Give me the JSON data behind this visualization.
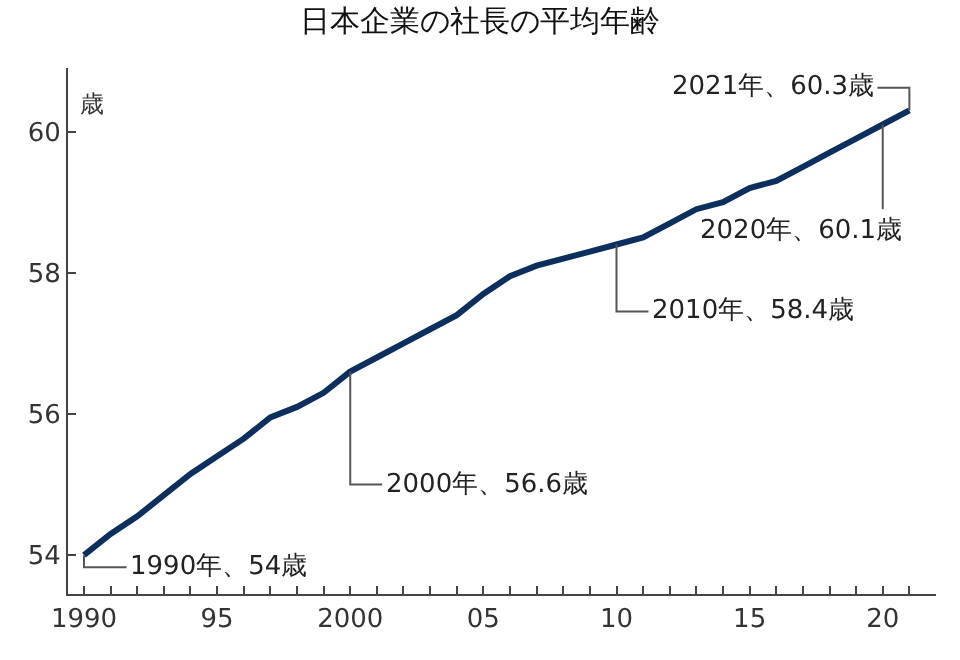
{
  "chart_data": {
    "type": "line",
    "title": "日本企業の社長の平均年齢",
    "ylabel": "歳",
    "x": [
      1990,
      1991,
      1992,
      1993,
      1994,
      1995,
      1996,
      1997,
      1998,
      1999,
      2000,
      2001,
      2002,
      2003,
      2004,
      2005,
      2006,
      2007,
      2008,
      2009,
      2010,
      2011,
      2012,
      2013,
      2014,
      2015,
      2016,
      2017,
      2018,
      2019,
      2020,
      2021
    ],
    "series": [
      {
        "color": "#0d2f5e",
        "values": [
          54.0,
          54.3,
          54.55,
          54.85,
          55.15,
          55.4,
          55.65,
          55.95,
          56.1,
          56.3,
          56.6,
          56.8,
          57.0,
          57.2,
          57.4,
          57.7,
          57.95,
          58.1,
          58.2,
          58.3,
          58.4,
          58.5,
          58.7,
          58.9,
          59.0,
          59.2,
          59.3,
          59.5,
          59.7,
          59.9,
          60.1,
          60.3
        ]
      }
    ],
    "xlim": [
      1989.4,
      2022
    ],
    "ylim": [
      53.45,
      60.9
    ],
    "xticks": [
      1990,
      {
        "value": 1991,
        "label": null
      },
      {
        "value": 1992,
        "label": null
      },
      {
        "value": 1993,
        "label": null
      },
      {
        "value": 1994,
        "label": null
      },
      {
        "value": 1995,
        "label": "95"
      },
      {
        "value": 1996,
        "label": null
      },
      {
        "value": 1997,
        "label": null
      },
      {
        "value": 1998,
        "label": null
      },
      {
        "value": 1999,
        "label": null
      },
      2000,
      {
        "value": 2001,
        "label": null
      },
      {
        "value": 2002,
        "label": null
      },
      {
        "value": 2003,
        "label": null
      },
      {
        "value": 2004,
        "label": null
      },
      {
        "value": 2005,
        "label": "05"
      },
      {
        "value": 2006,
        "label": null
      },
      {
        "value": 2007,
        "label": null
      },
      {
        "value": 2008,
        "label": null
      },
      {
        "value": 2009,
        "label": null
      },
      {
        "value": 2010,
        "label": "10"
      },
      {
        "value": 2011,
        "label": null
      },
      {
        "value": 2012,
        "label": null
      },
      {
        "value": 2013,
        "label": null
      },
      {
        "value": 2014,
        "label": null
      },
      {
        "value": 2015,
        "label": "15"
      },
      {
        "value": 2016,
        "label": null
      },
      {
        "value": 2017,
        "label": null
      },
      {
        "value": 2018,
        "label": null
      },
      {
        "value": 2019,
        "label": null
      },
      {
        "value": 2020,
        "label": "20"
      },
      {
        "value": 2021,
        "label": null
      }
    ],
    "yticks": [
      54,
      56,
      58,
      60
    ],
    "marker": "none",
    "line_style": "solid",
    "annotations": [
      {
        "text": "1990年、54歳",
        "x": 1990,
        "y": 54.0
      },
      {
        "text": "2000年、56.6歳",
        "x": 2000,
        "y": 56.6
      },
      {
        "text": "2010年、58.4歳",
        "x": 2010,
        "y": 58.4
      },
      {
        "text": "2020年、60.1歳",
        "x": 2020,
        "y": 60.1
      },
      {
        "text": "2021年、60.3歳",
        "x": 2021,
        "y": 60.3
      }
    ]
  }
}
